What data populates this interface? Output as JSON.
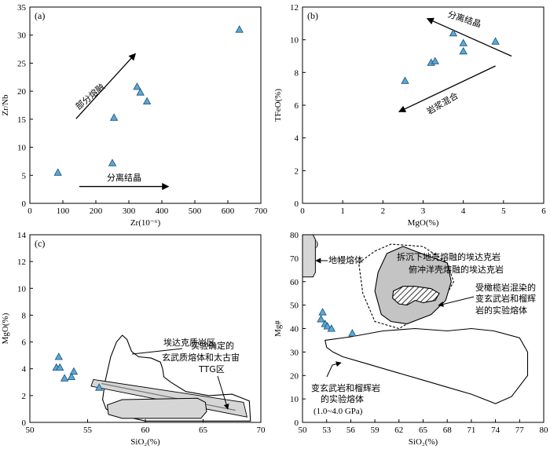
{
  "chart_data": [
    {
      "panel": "(a)",
      "type": "scatter",
      "xlabel": "Zr(10⁻⁶)",
      "ylabel": "Zr/Nb",
      "xlim": [
        0,
        700
      ],
      "ylim": [
        0,
        35
      ],
      "xticks": [
        0,
        100,
        200,
        300,
        400,
        500,
        600,
        700
      ],
      "yticks": [
        0,
        5,
        10,
        15,
        20,
        25,
        30,
        35
      ],
      "points": [
        [
          85,
          5.5
        ],
        [
          250,
          7.2
        ],
        [
          255,
          15.3
        ],
        [
          325,
          20.8
        ],
        [
          335,
          19.8
        ],
        [
          355,
          18.2
        ],
        [
          635,
          31
        ]
      ],
      "annotations": [
        {
          "text": "部分熔融",
          "arrow_from": [
            140,
            15.1
          ],
          "arrow_to": [
            320,
            26.7
          ]
        },
        {
          "text": "分离结晶",
          "arrow_from": [
            150,
            3
          ],
          "arrow_to": [
            420,
            3
          ]
        }
      ]
    },
    {
      "panel": "(b)",
      "type": "scatter",
      "xlabel": "MgO(%)",
      "ylabel": "TFeO(%)",
      "xlim": [
        0,
        6
      ],
      "ylim": [
        0,
        12
      ],
      "xticks": [
        0,
        1,
        2,
        3,
        4,
        5,
        6
      ],
      "yticks": [
        0,
        2,
        4,
        6,
        8,
        10,
        12
      ],
      "points": [
        [
          2.55,
          7.5
        ],
        [
          3.2,
          8.6
        ],
        [
          3.3,
          8.7
        ],
        [
          3.75,
          10.4
        ],
        [
          4.0,
          9.8
        ],
        [
          4.0,
          9.3
        ],
        [
          4.8,
          9.9
        ]
      ],
      "annotations": [
        {
          "text": "分离结晶",
          "arrow_from": [
            5.2,
            9.0
          ],
          "arrow_to": [
            3.1,
            11.3
          ]
        },
        {
          "text": "岩浆混合",
          "arrow_from": [
            4.8,
            8.4
          ],
          "arrow_to": [
            2.4,
            5.6
          ]
        }
      ]
    },
    {
      "panel": "(c)",
      "type": "scatter",
      "xlabel": "SiO₂(%)",
      "ylabel": "MgO(%)",
      "xlim": [
        50,
        70
      ],
      "ylim": [
        0,
        14
      ],
      "xticks": [
        50,
        55,
        60,
        65,
        70
      ],
      "yticks": [
        0,
        2,
        4,
        6,
        8,
        10,
        12,
        14
      ],
      "points": [
        [
          52.5,
          4.9
        ],
        [
          52.3,
          4.1
        ],
        [
          52.6,
          4.1
        ],
        [
          53.0,
          3.3
        ],
        [
          53.6,
          3.4
        ],
        [
          53.8,
          3.8
        ],
        [
          56.0,
          2.6
        ]
      ],
      "annotations": [
        {
          "text": "埃达克质岩区"
        },
        {
          "text": "实验确定的"
        },
        {
          "text": "玄武质熔体和太古宙"
        },
        {
          "text": "TTG区"
        }
      ]
    },
    {
      "panel": "(d)",
      "type": "scatter",
      "xlabel": "SiO₂(%)",
      "ylabel": "Mg#",
      "xlim": [
        50,
        80
      ],
      "ylim": [
        0,
        80
      ],
      "xticks": [
        50,
        53,
        56,
        59,
        62,
        65,
        68,
        71,
        74,
        77,
        80
      ],
      "yticks": [
        0,
        10,
        20,
        30,
        40,
        50,
        60,
        70,
        80
      ],
      "points": [
        [
          52.3,
          44
        ],
        [
          52.5,
          47
        ],
        [
          52.8,
          42
        ],
        [
          53.1,
          41
        ],
        [
          53.6,
          40
        ],
        [
          56.2,
          38
        ]
      ],
      "annotations": [
        {
          "text": "地幔熔体"
        },
        {
          "text": "拆沉下地壳熔融的埃达克岩"
        },
        {
          "text": "俯冲洋壳熔融的埃达克岩"
        },
        {
          "text": "受橄榄岩混染的"
        },
        {
          "text": "变玄武岩和榴辉"
        },
        {
          "text": "岩的实验熔体"
        },
        {
          "text": "变玄武岩和榴辉岩"
        },
        {
          "text": "的实验熔体"
        },
        {
          "text": "(1.0~4.0 GPa)"
        }
      ]
    }
  ]
}
